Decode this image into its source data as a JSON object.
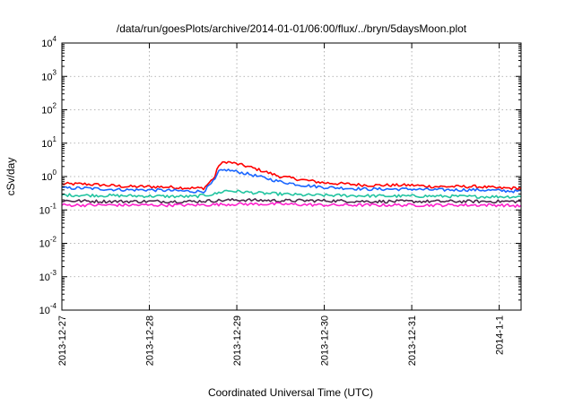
{
  "chart_data": {
    "type": "line",
    "title": "/data/run/goesPlots/archive/2014-01-01/06:00/flux/../bryn/5daysMoon.plot",
    "xlabel": "Coordinated Universal Time (UTC)",
    "ylabel": "cSv/day",
    "y_scale": "log",
    "grid": true,
    "legend": "none",
    "xlim": [
      "2013-12-27",
      "2014-01-01T06:00"
    ],
    "ylim": [
      0.0001,
      10000
    ],
    "x_ticks": [
      "2013-12-27",
      "2013-12-28",
      "2013-12-29",
      "2013-12-30",
      "2013-12-31",
      "2014-1-1"
    ],
    "y_ticks": [
      {
        "value": 10000,
        "base": "10",
        "exp": "4"
      },
      {
        "value": 1000,
        "base": "10",
        "exp": "3"
      },
      {
        "value": 100,
        "base": "10",
        "exp": "2"
      },
      {
        "value": 10,
        "base": "10",
        "exp": "1"
      },
      {
        "value": 1,
        "base": "10",
        "exp": "0"
      },
      {
        "value": 0.1,
        "base": "10",
        "exp": "-1"
      },
      {
        "value": 0.01,
        "base": "10",
        "exp": "-2"
      },
      {
        "value": 0.001,
        "base": "10",
        "exp": "-3"
      },
      {
        "value": 0.0001,
        "base": "10",
        "exp": "-4"
      }
    ],
    "series": [
      {
        "color": "#ff0000",
        "x": [
          "2013-12-27T00:00",
          "2013-12-27T06:00",
          "2013-12-27T12:00",
          "2013-12-27T18:00",
          "2013-12-28T00:00",
          "2013-12-28T06:00",
          "2013-12-28T12:00",
          "2013-12-28T15:00",
          "2013-12-28T18:00",
          "2013-12-28T19:00",
          "2013-12-28T21:00",
          "2013-12-29T00:00",
          "2013-12-29T03:00",
          "2013-12-29T06:00",
          "2013-12-29T12:00",
          "2013-12-29T18:00",
          "2013-12-30T00:00",
          "2013-12-30T06:00",
          "2013-12-30T12:00",
          "2013-12-30T18:00",
          "2013-12-31T00:00",
          "2013-12-31T06:00",
          "2013-12-31T12:00",
          "2013-12-31T18:00",
          "2014-01-01T00:00",
          "2014-01-01T06:00"
        ],
        "values": [
          0.6,
          0.6,
          0.55,
          0.5,
          0.5,
          0.48,
          0.45,
          0.45,
          1.0,
          2.2,
          2.8,
          2.4,
          2.0,
          1.6,
          1.0,
          0.8,
          0.65,
          0.6,
          0.55,
          0.55,
          0.55,
          0.5,
          0.5,
          0.5,
          0.45,
          0.45
        ]
      },
      {
        "color": "#1a66ff",
        "x": [
          "2013-12-27T00:00",
          "2013-12-27T06:00",
          "2013-12-27T12:00",
          "2013-12-27T18:00",
          "2013-12-28T00:00",
          "2013-12-28T06:00",
          "2013-12-28T12:00",
          "2013-12-28T15:00",
          "2013-12-28T18:00",
          "2013-12-28T19:00",
          "2013-12-28T21:00",
          "2013-12-29T00:00",
          "2013-12-29T03:00",
          "2013-12-29T06:00",
          "2013-12-29T12:00",
          "2013-12-29T18:00",
          "2013-12-30T00:00",
          "2013-12-30T06:00",
          "2013-12-30T12:00",
          "2013-12-30T18:00",
          "2013-12-31T00:00",
          "2013-12-31T06:00",
          "2013-12-31T12:00",
          "2013-12-31T18:00",
          "2014-01-01T00:00",
          "2014-01-01T06:00"
        ],
        "values": [
          0.45,
          0.45,
          0.42,
          0.4,
          0.4,
          0.38,
          0.36,
          0.36,
          0.8,
          1.4,
          1.6,
          1.4,
          1.2,
          1.0,
          0.7,
          0.55,
          0.48,
          0.45,
          0.42,
          0.42,
          0.42,
          0.4,
          0.4,
          0.4,
          0.38,
          0.36
        ]
      },
      {
        "color": "#22c4a0",
        "x": [
          "2013-12-27T00:00",
          "2013-12-27T12:00",
          "2013-12-28T00:00",
          "2013-12-28T12:00",
          "2013-12-28T18:00",
          "2013-12-28T21:00",
          "2013-12-29T06:00",
          "2013-12-29T18:00",
          "2013-12-30T06:00",
          "2013-12-30T18:00",
          "2013-12-31T06:00",
          "2013-12-31T18:00",
          "2014-01-01T06:00"
        ],
        "values": [
          0.28,
          0.27,
          0.26,
          0.25,
          0.3,
          0.38,
          0.32,
          0.28,
          0.27,
          0.26,
          0.26,
          0.25,
          0.25
        ]
      },
      {
        "color": "#4a2a4a",
        "x": [
          "2013-12-27T00:00",
          "2013-12-27T12:00",
          "2013-12-28T00:00",
          "2013-12-28T12:00",
          "2013-12-29T00:00",
          "2013-12-29T12:00",
          "2013-12-30T00:00",
          "2013-12-30T12:00",
          "2013-12-31T00:00",
          "2013-12-31T12:00",
          "2014-01-01T00:00",
          "2014-01-01T06:00"
        ],
        "values": [
          0.19,
          0.18,
          0.18,
          0.18,
          0.2,
          0.19,
          0.19,
          0.18,
          0.18,
          0.18,
          0.18,
          0.18
        ]
      },
      {
        "color": "#ff22cc",
        "x": [
          "2013-12-27T00:00",
          "2013-12-27T12:00",
          "2013-12-28T00:00",
          "2013-12-28T12:00",
          "2013-12-29T00:00",
          "2013-12-29T12:00",
          "2013-12-30T00:00",
          "2013-12-30T12:00",
          "2013-12-31T00:00",
          "2013-12-31T12:00",
          "2014-01-01T00:00",
          "2014-01-01T06:00"
        ],
        "values": [
          0.14,
          0.14,
          0.14,
          0.14,
          0.15,
          0.15,
          0.14,
          0.14,
          0.14,
          0.14,
          0.14,
          0.13
        ]
      }
    ]
  }
}
